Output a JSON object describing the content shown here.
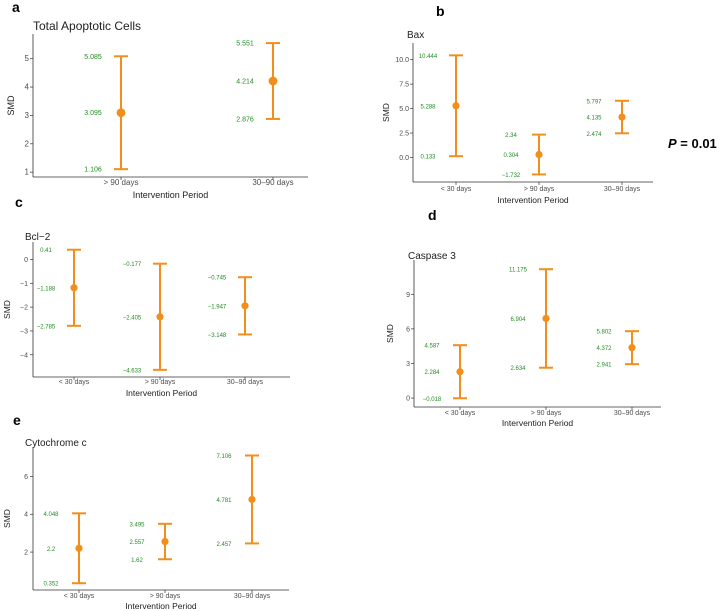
{
  "figure": {
    "p_value": {
      "label": "P",
      "text": " = 0.01"
    },
    "colors": {
      "point": "#f28e1c",
      "value_text": "#228B22",
      "axis": "#333333",
      "tick_text": "#4d4d4d"
    }
  },
  "chart_data": [
    {
      "letter": "a",
      "type": "scatter",
      "title": "Total Apoptotic Cells",
      "xlabel": "Intervention Period",
      "ylabel": "SMD",
      "categories": [
        "> 90 days",
        "30–90 days"
      ],
      "ylim": [
        0.9,
        5.8
      ],
      "yticks": [
        1,
        2,
        3,
        4,
        5
      ],
      "ytick_labels": [
        "1",
        "2",
        "3",
        "4",
        "5"
      ],
      "points": [
        {
          "mean": 3.095,
          "lower": 1.106,
          "upper": 5.085,
          "labels": {
            "mean": "3.095",
            "lower": "1.106",
            "upper": "5.085"
          }
        },
        {
          "mean": 4.214,
          "lower": 2.876,
          "upper": 5.551,
          "labels": {
            "mean": "4.214",
            "lower": "2.876",
            "upper": "5.551"
          }
        }
      ]
    },
    {
      "letter": "b",
      "type": "scatter",
      "title": "Bax",
      "xlabel": "Intervention Period",
      "ylabel": "SMD",
      "categories": [
        "< 30 days",
        "> 90 days",
        "30–90 days"
      ],
      "ylim": [
        -2.3,
        11.5
      ],
      "yticks": [
        0,
        2.5,
        5,
        7.5,
        10
      ],
      "ytick_labels": [
        "0.0",
        "2.5",
        "5.0",
        "7.5",
        "10.0"
      ],
      "points": [
        {
          "mean": 5.288,
          "lower": 0.133,
          "upper": 10.444,
          "labels": {
            "mean": "5.288",
            "lower": "0.133",
            "upper": "10.444"
          }
        },
        {
          "mean": 0.304,
          "lower": -1.732,
          "upper": 2.34,
          "labels": {
            "mean": "0.304",
            "lower": "−1.732",
            "upper": "2.34"
          }
        },
        {
          "mean": 4.135,
          "lower": 2.474,
          "upper": 5.797,
          "labels": {
            "mean": "4.135",
            "lower": "2.474",
            "upper": "5.797"
          }
        }
      ]
    },
    {
      "letter": "c",
      "type": "scatter",
      "title": "Bcl−2",
      "xlabel": "Intervention Period",
      "ylabel": "SMD",
      "categories": [
        "< 30 days",
        "> 90 days",
        "30–90 days"
      ],
      "ylim": [
        -4.85,
        0.65
      ],
      "yticks": [
        -4,
        -3,
        -2,
        -1,
        0
      ],
      "ytick_labels": [
        "−4",
        "−3",
        "−2",
        "−1",
        "0"
      ],
      "points": [
        {
          "mean": -1.188,
          "lower": -2.785,
          "upper": 0.41,
          "labels": {
            "mean": "−1.188",
            "lower": "−2.785",
            "upper": "0.41"
          }
        },
        {
          "mean": -2.405,
          "lower": -4.633,
          "upper": -0.177,
          "labels": {
            "mean": "−2.405",
            "lower": "−4.633",
            "upper": "−0.177"
          }
        },
        {
          "mean": -1.947,
          "lower": -3.148,
          "upper": -0.745,
          "labels": {
            "mean": "−1.947",
            "lower": "−3.148",
            "upper": "−0.745"
          }
        }
      ]
    },
    {
      "letter": "d",
      "type": "scatter",
      "title": "Caspase 3",
      "xlabel": "Intervention Period",
      "ylabel": "SMD",
      "categories": [
        "< 30 days",
        "> 90 days",
        "30–90 days"
      ],
      "ylim": [
        -0.6,
        11.8
      ],
      "yticks": [
        0,
        3,
        6,
        9
      ],
      "ytick_labels": [
        "0",
        "3",
        "6",
        "9"
      ],
      "points": [
        {
          "mean": 2.284,
          "lower": -0.018,
          "upper": 4.587,
          "labels": {
            "mean": "2.284",
            "lower": "−0.018",
            "upper": "4.587"
          }
        },
        {
          "mean": 6.904,
          "lower": 2.634,
          "upper": 11.175,
          "labels": {
            "mean": "6.904",
            "lower": "2.634",
            "upper": "11.175"
          }
        },
        {
          "mean": 4.372,
          "lower": 2.941,
          "upper": 5.802,
          "labels": {
            "mean": "4.372",
            "lower": "2.941",
            "upper": "5.802"
          }
        }
      ]
    },
    {
      "letter": "e",
      "type": "scatter",
      "title": "Cytochrome c",
      "xlabel": "Intervention Period",
      "ylabel": "SMD",
      "categories": [
        "< 30 days",
        "> 90 days",
        "30–90 days"
      ],
      "ylim": [
        0.1,
        7.45
      ],
      "yticks": [
        2,
        4,
        6
      ],
      "ytick_labels": [
        "2",
        "4",
        "6"
      ],
      "points": [
        {
          "mean": 2.2,
          "lower": 0.352,
          "upper": 4.048,
          "labels": {
            "mean": "2.2",
            "lower": "0.352",
            "upper": "4.048"
          }
        },
        {
          "mean": 2.557,
          "lower": 1.62,
          "upper": 3.495,
          "labels": {
            "mean": "2.557",
            "lower": "1.62",
            "upper": "3.495"
          }
        },
        {
          "mean": 4.781,
          "lower": 2.457,
          "upper": 7.106,
          "labels": {
            "mean": "4.781",
            "lower": "2.457",
            "upper": "7.106"
          }
        }
      ]
    }
  ]
}
